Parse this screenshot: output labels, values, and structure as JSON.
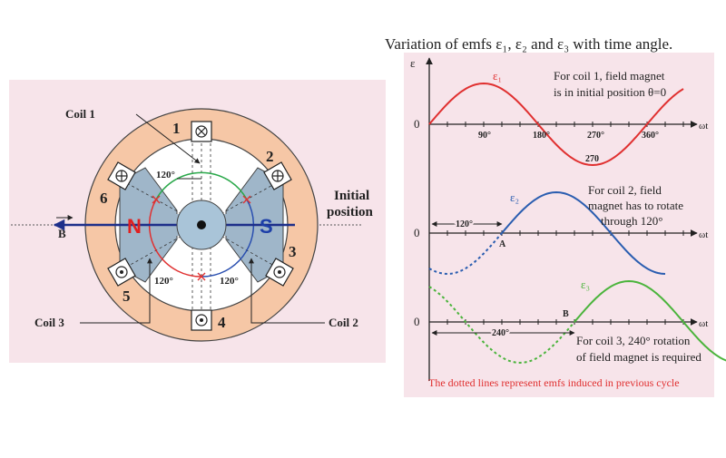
{
  "left_diagram": {
    "coil_1": "Coil 1",
    "coil_2": "Coil 2",
    "coil_3": "Coil 3",
    "slots": [
      "1",
      "2",
      "3",
      "4",
      "5",
      "6"
    ],
    "north": "N",
    "south": "S",
    "field": "B",
    "initial_position": [
      "Initial",
      "position"
    ],
    "angles": [
      "120°",
      "120°",
      "120°"
    ]
  },
  "right_graph": {
    "title": "Variation of emfs  ε₁, ε₂ and ε₃ with time angle.",
    "y_axis": "ε",
    "plots": [
      {
        "origin": "0",
        "x_axis": "ωt",
        "curve": "ε₁",
        "ticks": [
          "90°",
          "180°",
          "270°",
          "360°"
        ],
        "extra_tick": "270",
        "note": [
          "For coil 1, field magnet",
          "is in initial position θ=0"
        ]
      },
      {
        "origin": "0",
        "x_axis": "ωt",
        "curve": "ε₂",
        "shift": "120°",
        "point": "A",
        "note": [
          "For coil 2, field",
          "magnet has to rotate",
          "through 120°"
        ]
      },
      {
        "origin": "0",
        "x_axis": "ωt",
        "curve": "ε₃",
        "shift": "240°",
        "point": "B",
        "note": [
          "For coil 3, 240° rotation",
          "of field magnet is required"
        ]
      }
    ],
    "footnote": "The dotted lines represent emfs induced in previous cycle"
  }
}
